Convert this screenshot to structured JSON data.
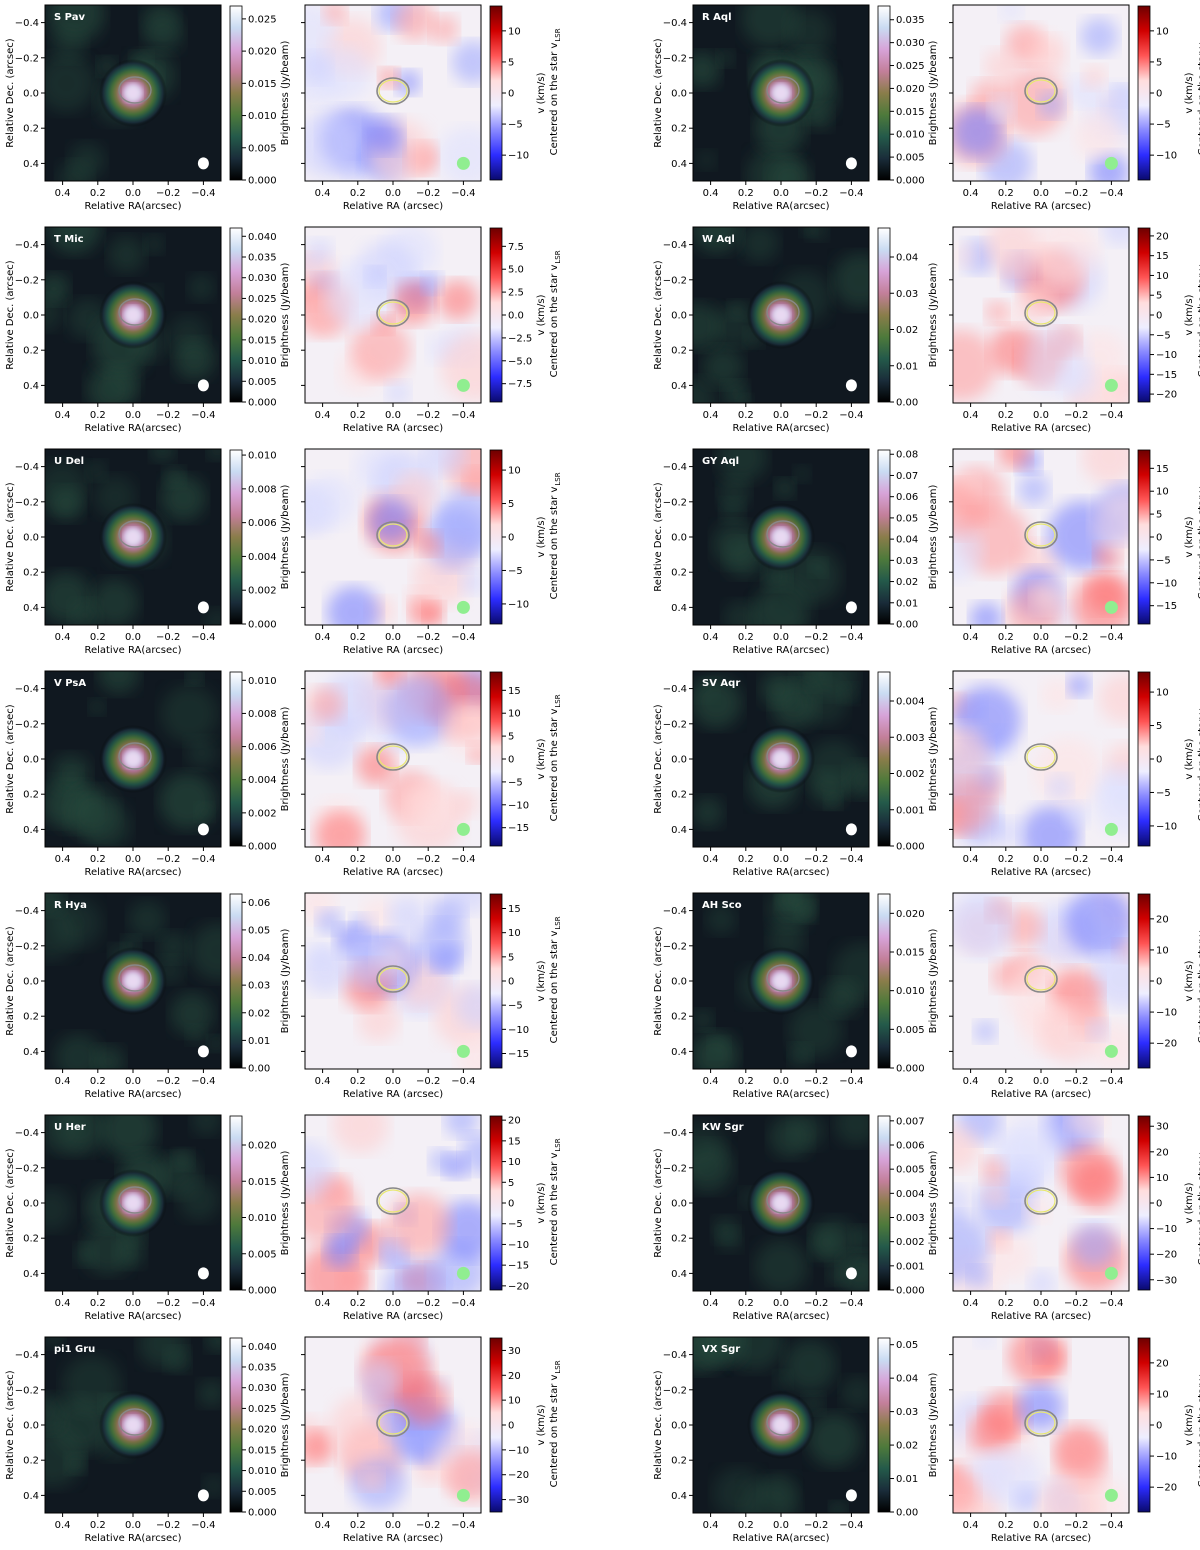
{
  "figure": {
    "mom0_ylabel": "Relative Dec. (arcsec)",
    "mom0_xlabel": "Relative RA(arcsec)",
    "mom1_xlabel": "Relative RA (arcsec)",
    "cbar0_label": "Brightness (Jy/beam)",
    "cbar1_label_line1": "v (km/s)",
    "cbar1_label_line2": "Centered on the star v",
    "cbar1_label_sub": "LSR",
    "axis_ticks": [
      "0.4",
      "0.2",
      "0.0",
      "−0.2",
      "−0.4"
    ],
    "axis_tick_values": [
      0.4,
      0.2,
      0.0,
      -0.2,
      -0.4
    ],
    "colors": {
      "mom0_stops": [
        "#000000",
        "#1a2d3a",
        "#245a4a",
        "#4e7a3b",
        "#8a7d4a",
        "#c37f9a",
        "#d7a3d8",
        "#c9dbf2",
        "#ffffff"
      ],
      "mom1_stops": [
        "#0a0a6e",
        "#2c2cff",
        "#8888ff",
        "#eeeeff",
        "#ffdddd",
        "#ff5555",
        "#d00000",
        "#6e0000"
      ],
      "beam_white": "#ffffff",
      "beam_green": "#90ee90",
      "contour_grey": "#888888",
      "contour_yellow": "#e8e870",
      "contour_pink": "#c78ab2"
    }
  },
  "chart_data": [
    {
      "type": "heatmap",
      "panel": "moment0",
      "star": "S Pav",
      "colorbar": {
        "label": "Brightness (Jy/beam)",
        "ticks": [
          "0.025",
          "0.020",
          "0.015",
          "0.010",
          "0.005",
          "0.000"
        ],
        "range": [
          0,
          0.027
        ]
      },
      "xlim": [
        0.5,
        -0.5
      ],
      "ylim": [
        -0.5,
        0.5
      ]
    },
    {
      "type": "heatmap",
      "panel": "moment1",
      "star": "S Pav",
      "colorbar": {
        "label": "v (km/s) Centered on the star vLSR",
        "ticks": [
          "10",
          "5",
          "0",
          "−5",
          "−10"
        ],
        "range": [
          -14,
          14
        ]
      },
      "xlim": [
        0.5,
        -0.5
      ],
      "ylim": [
        -0.5,
        0.5
      ]
    },
    {
      "type": "heatmap",
      "panel": "moment0",
      "star": "R Aql",
      "colorbar": {
        "label": "Brightness (Jy/beam)",
        "ticks": [
          "0.035",
          "0.030",
          "0.025",
          "0.020",
          "0.015",
          "0.010",
          "0.005",
          "0.000"
        ],
        "range": [
          0,
          0.038
        ]
      },
      "xlim": [
        0.5,
        -0.5
      ],
      "ylim": [
        -0.5,
        0.5
      ]
    },
    {
      "type": "heatmap",
      "panel": "moment1",
      "star": "R Aql",
      "colorbar": {
        "label": "v (km/s) Centered on the star vLSR",
        "ticks": [
          "10",
          "5",
          "0",
          "−5",
          "−10"
        ],
        "range": [
          -14,
          14
        ]
      },
      "xlim": [
        0.5,
        -0.5
      ],
      "ylim": [
        -0.5,
        0.5
      ]
    },
    {
      "type": "heatmap",
      "panel": "moment0",
      "star": "T Mic",
      "colorbar": {
        "label": "Brightness (Jy/beam)",
        "ticks": [
          "0.040",
          "0.035",
          "0.030",
          "0.025",
          "0.020",
          "0.015",
          "0.010",
          "0.005",
          "0.000"
        ],
        "range": [
          0,
          0.042
        ]
      },
      "xlim": [
        0.5,
        -0.5
      ],
      "ylim": [
        -0.5,
        0.5
      ]
    },
    {
      "type": "heatmap",
      "panel": "moment1",
      "star": "T Mic",
      "colorbar": {
        "label": "v (km/s) Centered on the star vLSR",
        "ticks": [
          "7.5",
          "5.0",
          "2.5",
          "0.0",
          "−2.5",
          "−5.0",
          "−7.5"
        ],
        "range": [
          -9.5,
          9.5
        ]
      },
      "xlim": [
        0.5,
        -0.5
      ],
      "ylim": [
        -0.5,
        0.5
      ]
    },
    {
      "type": "heatmap",
      "panel": "moment0",
      "star": "W Aql",
      "colorbar": {
        "label": "Brightness (Jy/beam)",
        "ticks": [
          "0.04",
          "0.03",
          "0.02",
          "0.01",
          "0.00"
        ],
        "range": [
          0,
          0.048
        ]
      },
      "xlim": [
        0.5,
        -0.5
      ],
      "ylim": [
        -0.5,
        0.5
      ]
    },
    {
      "type": "heatmap",
      "panel": "moment1",
      "star": "W Aql",
      "colorbar": {
        "label": "v (km/s) Centered on the star vLSR",
        "ticks": [
          "20",
          "15",
          "10",
          "5",
          "0",
          "−5",
          "−10",
          "−15",
          "−20"
        ],
        "range": [
          -22,
          22
        ]
      },
      "xlim": [
        0.5,
        -0.5
      ],
      "ylim": [
        -0.5,
        0.5
      ]
    },
    {
      "type": "heatmap",
      "panel": "moment0",
      "star": "U Del",
      "colorbar": {
        "label": "Brightness (Jy/beam)",
        "ticks": [
          "0.010",
          "0.008",
          "0.006",
          "0.004",
          "0.002",
          "0.000"
        ],
        "range": [
          0,
          0.0103
        ]
      },
      "xlim": [
        0.5,
        -0.5
      ],
      "ylim": [
        -0.5,
        0.5
      ]
    },
    {
      "type": "heatmap",
      "panel": "moment1",
      "star": "U Del",
      "colorbar": {
        "label": "v (km/s) Centered on the star vLSR",
        "ticks": [
          "10",
          "5",
          "0",
          "−5",
          "−10"
        ],
        "range": [
          -13,
          13
        ]
      },
      "xlim": [
        0.5,
        -0.5
      ],
      "ylim": [
        -0.5,
        0.5
      ]
    },
    {
      "type": "heatmap",
      "panel": "moment0",
      "star": "GY Aql",
      "colorbar": {
        "label": "Brightness (Jy/beam)",
        "ticks": [
          "0.08",
          "0.07",
          "0.06",
          "0.05",
          "0.04",
          "0.03",
          "0.02",
          "0.01",
          "0.00"
        ],
        "range": [
          0,
          0.082
        ]
      },
      "xlim": [
        0.5,
        -0.5
      ],
      "ylim": [
        -0.5,
        0.5
      ]
    },
    {
      "type": "heatmap",
      "panel": "moment1",
      "star": "GY Aql",
      "colorbar": {
        "label": "v (km/s) Centered on the star vLSR",
        "ticks": [
          "15",
          "10",
          "5",
          "0",
          "−5",
          "−10",
          "−15"
        ],
        "range": [
          -19,
          19
        ]
      },
      "xlim": [
        0.5,
        -0.5
      ],
      "ylim": [
        -0.5,
        0.5
      ]
    },
    {
      "type": "heatmap",
      "panel": "moment0",
      "star": "V PsA",
      "colorbar": {
        "label": "Brightness (Jy/beam)",
        "ticks": [
          "0.010",
          "0.008",
          "0.006",
          "0.004",
          "0.002",
          "0.000"
        ],
        "range": [
          0,
          0.0105
        ]
      },
      "xlim": [
        0.5,
        -0.5
      ],
      "ylim": [
        -0.5,
        0.5
      ]
    },
    {
      "type": "heatmap",
      "panel": "moment1",
      "star": "V PsA",
      "colorbar": {
        "label": "v (km/s) Centered on the star vLSR",
        "ticks": [
          "15",
          "10",
          "5",
          "0",
          "−5",
          "−10",
          "−15"
        ],
        "range": [
          -19,
          19
        ]
      },
      "xlim": [
        0.5,
        -0.5
      ],
      "ylim": [
        -0.5,
        0.5
      ]
    },
    {
      "type": "heatmap",
      "panel": "moment0",
      "star": "SV Aqr",
      "colorbar": {
        "label": "Brightness (Jy/beam)",
        "ticks": [
          "0.004",
          "0.003",
          "0.002",
          "0.001",
          "0.000"
        ],
        "range": [
          0,
          0.0048
        ]
      },
      "xlim": [
        0.5,
        -0.5
      ],
      "ylim": [
        -0.5,
        0.5
      ]
    },
    {
      "type": "heatmap",
      "panel": "moment1",
      "star": "SV Aqr",
      "colorbar": {
        "label": "v (km/s) Centered on the star vLSR",
        "ticks": [
          "10",
          "5",
          "0",
          "−5",
          "−10"
        ],
        "range": [
          -13,
          13
        ]
      },
      "xlim": [
        0.5,
        -0.5
      ],
      "ylim": [
        -0.5,
        0.5
      ]
    },
    {
      "type": "heatmap",
      "panel": "moment0",
      "star": "R Hya",
      "colorbar": {
        "label": "Brightness (Jy/beam)",
        "ticks": [
          "0.06",
          "0.05",
          "0.04",
          "0.03",
          "0.02",
          "0.01",
          "0.00"
        ],
        "range": [
          0,
          0.063
        ]
      },
      "xlim": [
        0.5,
        -0.5
      ],
      "ylim": [
        -0.5,
        0.5
      ]
    },
    {
      "type": "heatmap",
      "panel": "moment1",
      "star": "R Hya",
      "colorbar": {
        "label": "v (km/s) Centered on the star vLSR",
        "ticks": [
          "15",
          "10",
          "5",
          "0",
          "−5",
          "−10",
          "−15"
        ],
        "range": [
          -18,
          18
        ]
      },
      "xlim": [
        0.5,
        -0.5
      ],
      "ylim": [
        -0.5,
        0.5
      ]
    },
    {
      "type": "heatmap",
      "panel": "moment0",
      "star": "AH Sco",
      "colorbar": {
        "label": "Brightness (Jy/beam)",
        "ticks": [
          "0.020",
          "0.015",
          "0.010",
          "0.005",
          "0.000"
        ],
        "range": [
          0,
          0.0225
        ]
      },
      "xlim": [
        0.5,
        -0.5
      ],
      "ylim": [
        -0.5,
        0.5
      ]
    },
    {
      "type": "heatmap",
      "panel": "moment1",
      "star": "AH Sco",
      "colorbar": {
        "label": "v (km/s) Centered on the star vLSR",
        "ticks": [
          "20",
          "10",
          "0",
          "−10",
          "−20"
        ],
        "range": [
          -28,
          28
        ]
      },
      "xlim": [
        0.5,
        -0.5
      ],
      "ylim": [
        -0.5,
        0.5
      ]
    },
    {
      "type": "heatmap",
      "panel": "moment0",
      "star": "U Her",
      "colorbar": {
        "label": "Brightness (Jy/beam)",
        "ticks": [
          "0.020",
          "0.015",
          "0.010",
          "0.005",
          "0.000"
        ],
        "range": [
          0,
          0.024
        ]
      },
      "xlim": [
        0.5,
        -0.5
      ],
      "ylim": [
        -0.5,
        0.5
      ]
    },
    {
      "type": "heatmap",
      "panel": "moment1",
      "star": "U Her",
      "colorbar": {
        "label": "v (km/s) Centered on the star vLSR",
        "ticks": [
          "20",
          "15",
          "10",
          "5",
          "0",
          "−5",
          "−10",
          "−15",
          "−20"
        ],
        "range": [
          -21,
          21
        ]
      },
      "xlim": [
        0.5,
        -0.5
      ],
      "ylim": [
        -0.5,
        0.5
      ]
    },
    {
      "type": "heatmap",
      "panel": "moment0",
      "star": "KW Sgr",
      "colorbar": {
        "label": "Brightness (Jy/beam)",
        "ticks": [
          "0.007",
          "0.006",
          "0.005",
          "0.004",
          "0.003",
          "0.002",
          "0.001",
          "0.000"
        ],
        "range": [
          0,
          0.0072
        ]
      },
      "xlim": [
        0.5,
        -0.5
      ],
      "ylim": [
        -0.5,
        0.5
      ]
    },
    {
      "type": "heatmap",
      "panel": "moment1",
      "star": "KW Sgr",
      "colorbar": {
        "label": "v (km/s) Centered on the star vLSR",
        "ticks": [
          "30",
          "20",
          "10",
          "0",
          "−10",
          "−20",
          "−30"
        ],
        "range": [
          -34,
          34
        ]
      },
      "xlim": [
        0.5,
        -0.5
      ],
      "ylim": [
        -0.5,
        0.5
      ]
    },
    {
      "type": "heatmap",
      "panel": "moment0",
      "star": "pi1 Gru",
      "colorbar": {
        "label": "Brightness (Jy/beam)",
        "ticks": [
          "0.040",
          "0.035",
          "0.030",
          "0.025",
          "0.020",
          "0.015",
          "0.010",
          "0.005",
          "0.000"
        ],
        "range": [
          0,
          0.042
        ]
      },
      "xlim": [
        0.5,
        -0.5
      ],
      "ylim": [
        -0.5,
        0.5
      ]
    },
    {
      "type": "heatmap",
      "panel": "moment1",
      "star": "pi1 Gru",
      "colorbar": {
        "label": "v (km/s) Centered on the star vLSR",
        "ticks": [
          "30",
          "20",
          "10",
          "0",
          "−10",
          "−20",
          "−30"
        ],
        "range": [
          -35,
          35
        ]
      },
      "xlim": [
        0.5,
        -0.5
      ],
      "ylim": [
        -0.5,
        0.5
      ]
    },
    {
      "type": "heatmap",
      "panel": "moment0",
      "star": "VX Sgr",
      "colorbar": {
        "label": "Brightness (Jy/beam)",
        "ticks": [
          "0.05",
          "0.04",
          "0.03",
          "0.02",
          "0.01",
          "0.00"
        ],
        "range": [
          0,
          0.052
        ]
      },
      "xlim": [
        0.5,
        -0.5
      ],
      "ylim": [
        -0.5,
        0.5
      ]
    },
    {
      "type": "heatmap",
      "panel": "moment1",
      "star": "VX Sgr",
      "colorbar": {
        "label": "v (km/s) Centered on the star vLSR",
        "ticks": [
          "20",
          "10",
          "0",
          "−10",
          "−20"
        ],
        "range": [
          -28,
          28
        ]
      },
      "xlim": [
        0.5,
        -0.5
      ],
      "ylim": [
        -0.5,
        0.5
      ]
    }
  ]
}
